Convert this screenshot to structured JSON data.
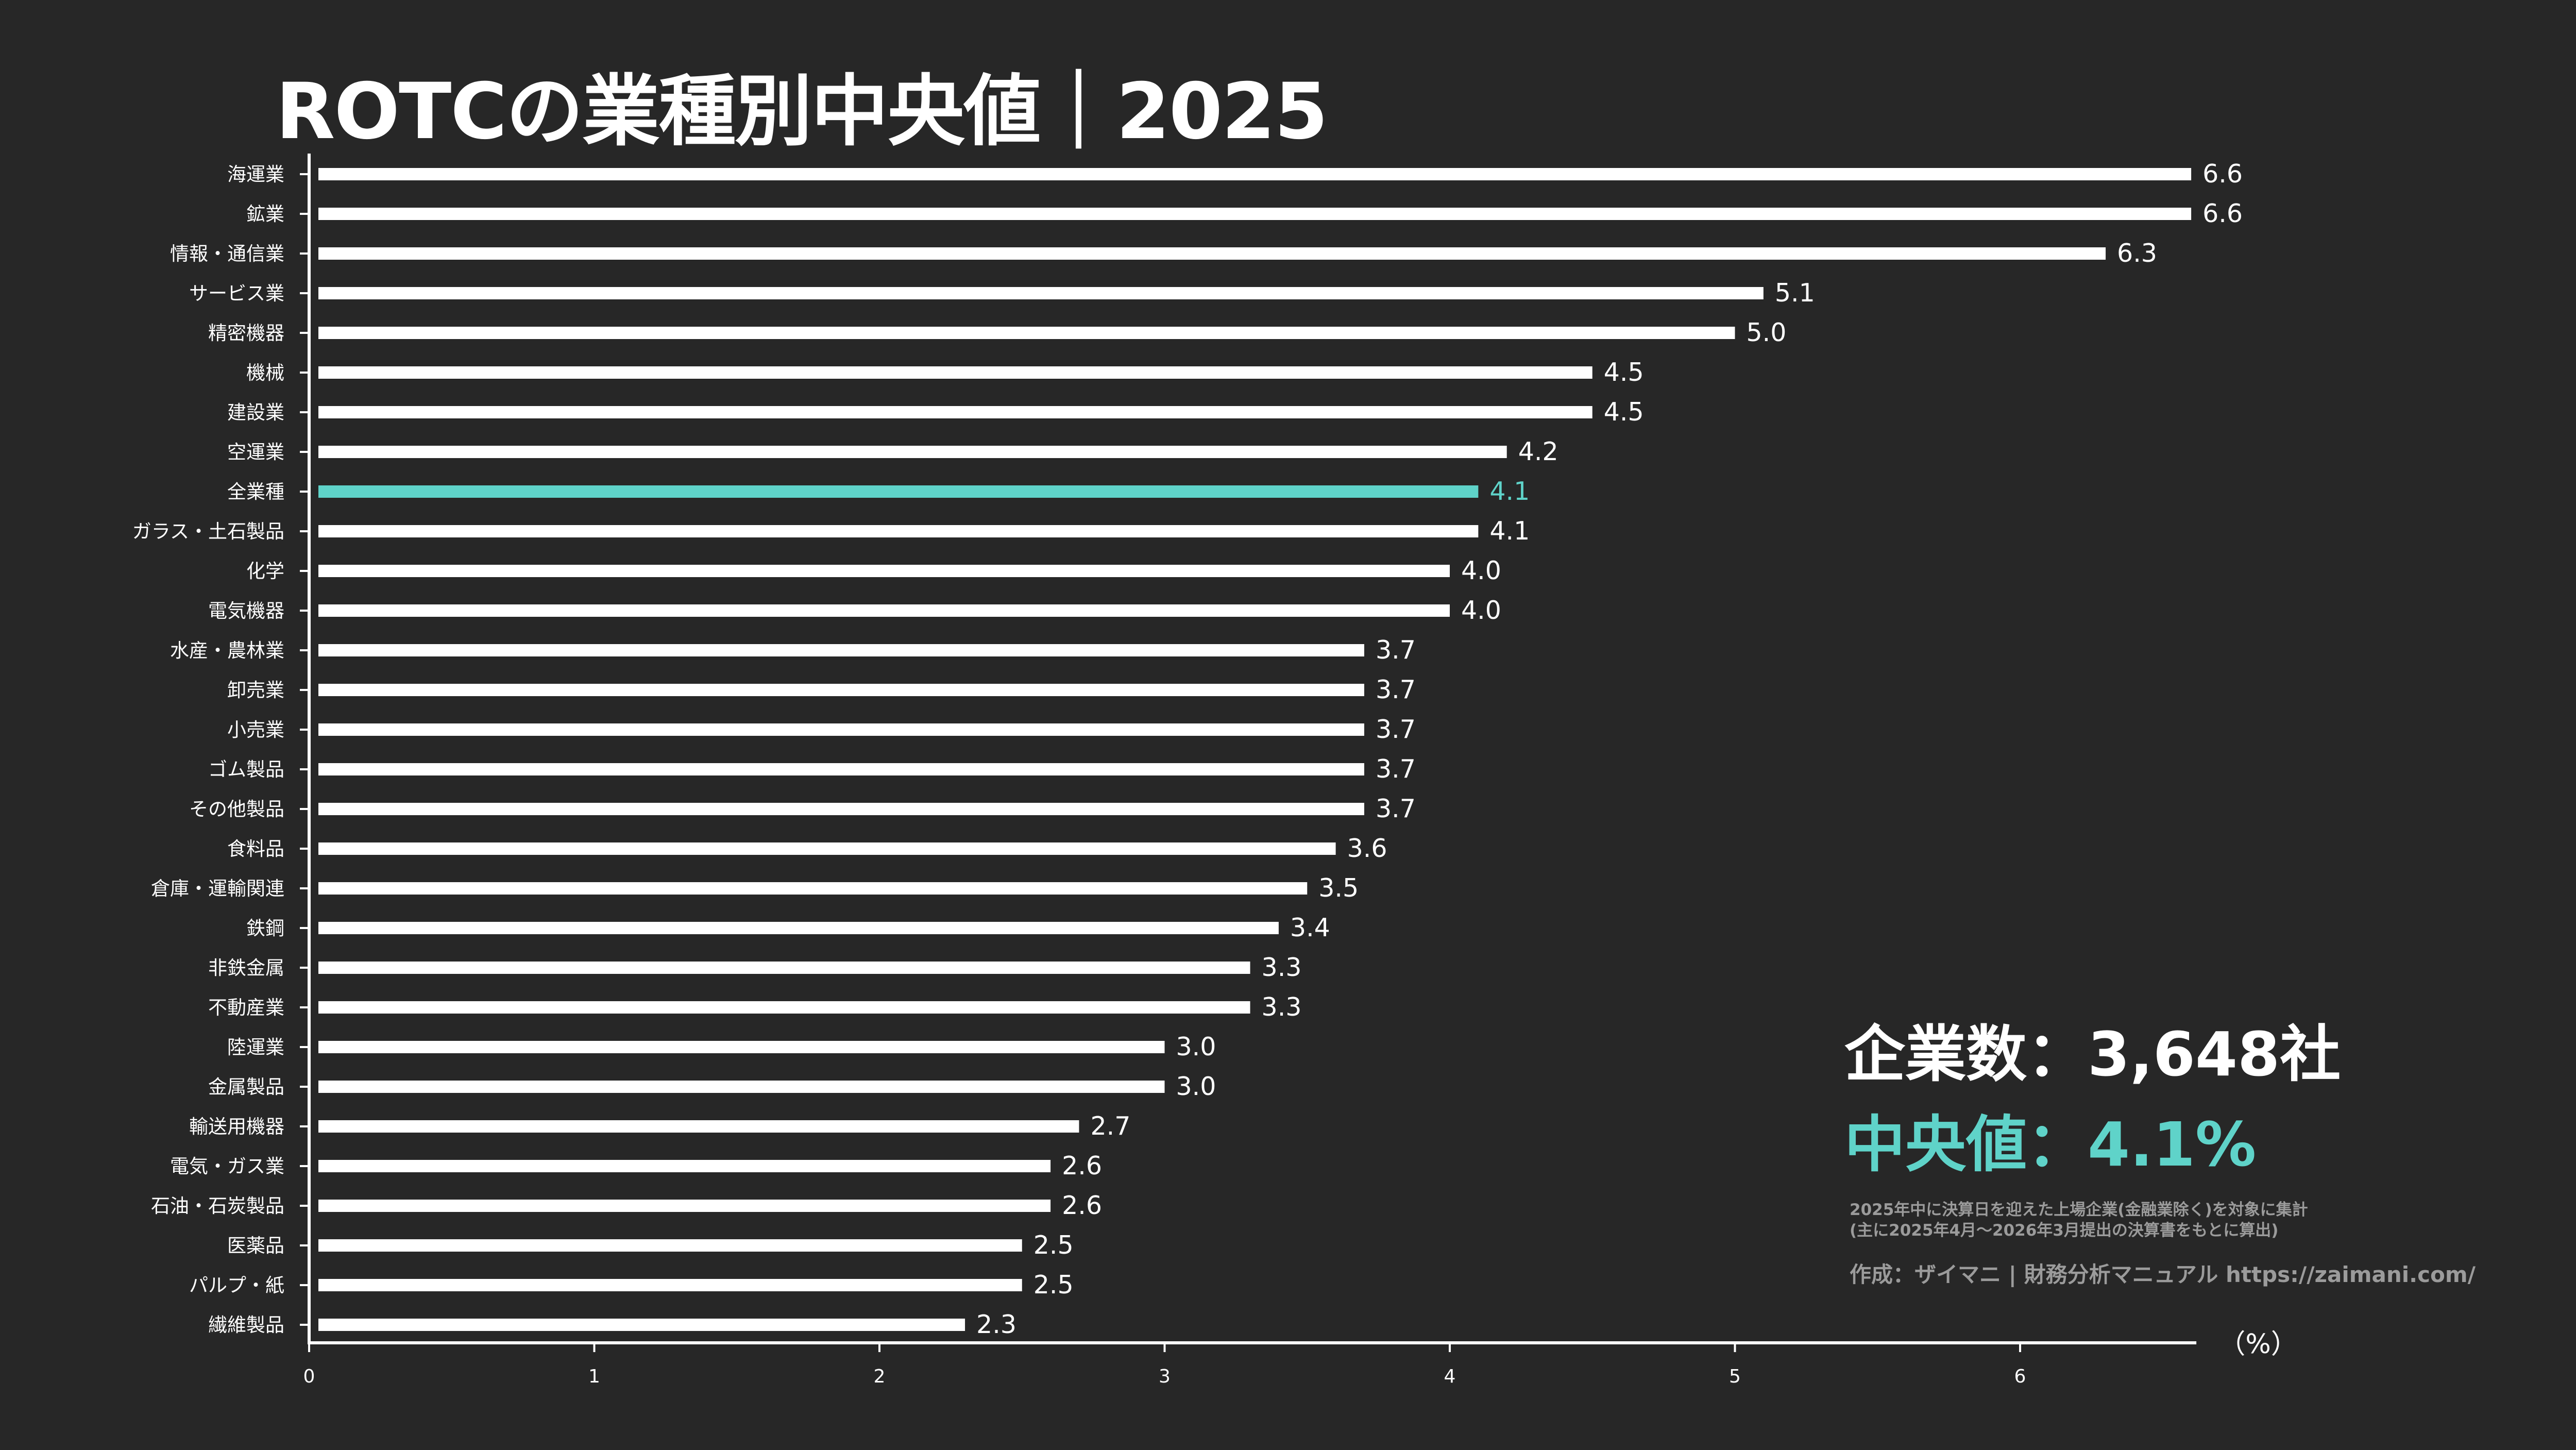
{
  "title": "ROTCの業種別中央値｜2025",
  "summary": {
    "count_text": "企業数：3,648社",
    "median_text": "中央値：4.1%"
  },
  "notes": {
    "line1": "2025年中に決算日を迎えた上場企業(金融業除く)を対象に集計",
    "line2": "(主に2025年4月〜2026年3月提出の決算書をもとに算出)",
    "credit": "作成：ザイマニ | 財務分析マニュアル https://zaimani.com/"
  },
  "colors": {
    "background": "#272727",
    "bar": "#ffffff",
    "highlight": "#5fd3c9",
    "text": "#ffffff",
    "note": "#9b9b9b"
  },
  "chart_data": {
    "type": "bar",
    "orientation": "horizontal",
    "title": "ROTCの業種別中央値｜2025",
    "xlabel": "（%）",
    "ylabel": "",
    "xlim": [
      0,
      6.6
    ],
    "xticks": [
      0,
      1,
      2,
      3,
      4,
      5,
      6
    ],
    "grid": false,
    "highlight_category": "全業種",
    "categories": [
      "海運業",
      "鉱業",
      "情報・通信業",
      "サービス業",
      "精密機器",
      "機械",
      "建設業",
      "空運業",
      "全業種",
      "ガラス・土石製品",
      "化学",
      "電気機器",
      "水産・農林業",
      "卸売業",
      "小売業",
      "ゴム製品",
      "その他製品",
      "食料品",
      "倉庫・運輸関連",
      "鉄鋼",
      "非鉄金属",
      "不動産業",
      "陸運業",
      "金属製品",
      "輸送用機器",
      "電気・ガス業",
      "石油・石炭製品",
      "医薬品",
      "パルプ・紙",
      "繊維製品"
    ],
    "values": [
      6.6,
      6.6,
      6.3,
      5.1,
      5.0,
      4.5,
      4.5,
      4.2,
      4.1,
      4.1,
      4.0,
      4.0,
      3.7,
      3.7,
      3.7,
      3.7,
      3.7,
      3.6,
      3.5,
      3.4,
      3.3,
      3.3,
      3.0,
      3.0,
      2.7,
      2.6,
      2.6,
      2.5,
      2.5,
      2.3
    ],
    "labels": [
      "6.6",
      "6.6",
      "6.3",
      "5.1",
      "5.0",
      "4.5",
      "4.5",
      "4.2",
      "4.1",
      "4.1",
      "4.0",
      "4.0",
      "3.7",
      "3.7",
      "3.7",
      "3.7",
      "3.7",
      "3.6",
      "3.5",
      "3.4",
      "3.3",
      "3.3",
      "3.0",
      "3.0",
      "2.7",
      "2.6",
      "2.6",
      "2.5",
      "2.5",
      "2.3"
    ]
  }
}
